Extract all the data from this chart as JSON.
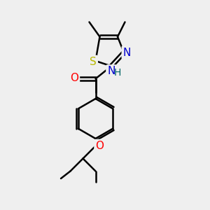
{
  "bg_color": "#efefef",
  "bond_color": "#000000",
  "bond_width": 1.8,
  "atom_colors": {
    "S": "#b8b800",
    "N": "#0000cc",
    "O": "#ff0000",
    "C": "#000000"
  },
  "font_size": 10,
  "fig_size": [
    3.0,
    3.0
  ],
  "dpi": 100
}
